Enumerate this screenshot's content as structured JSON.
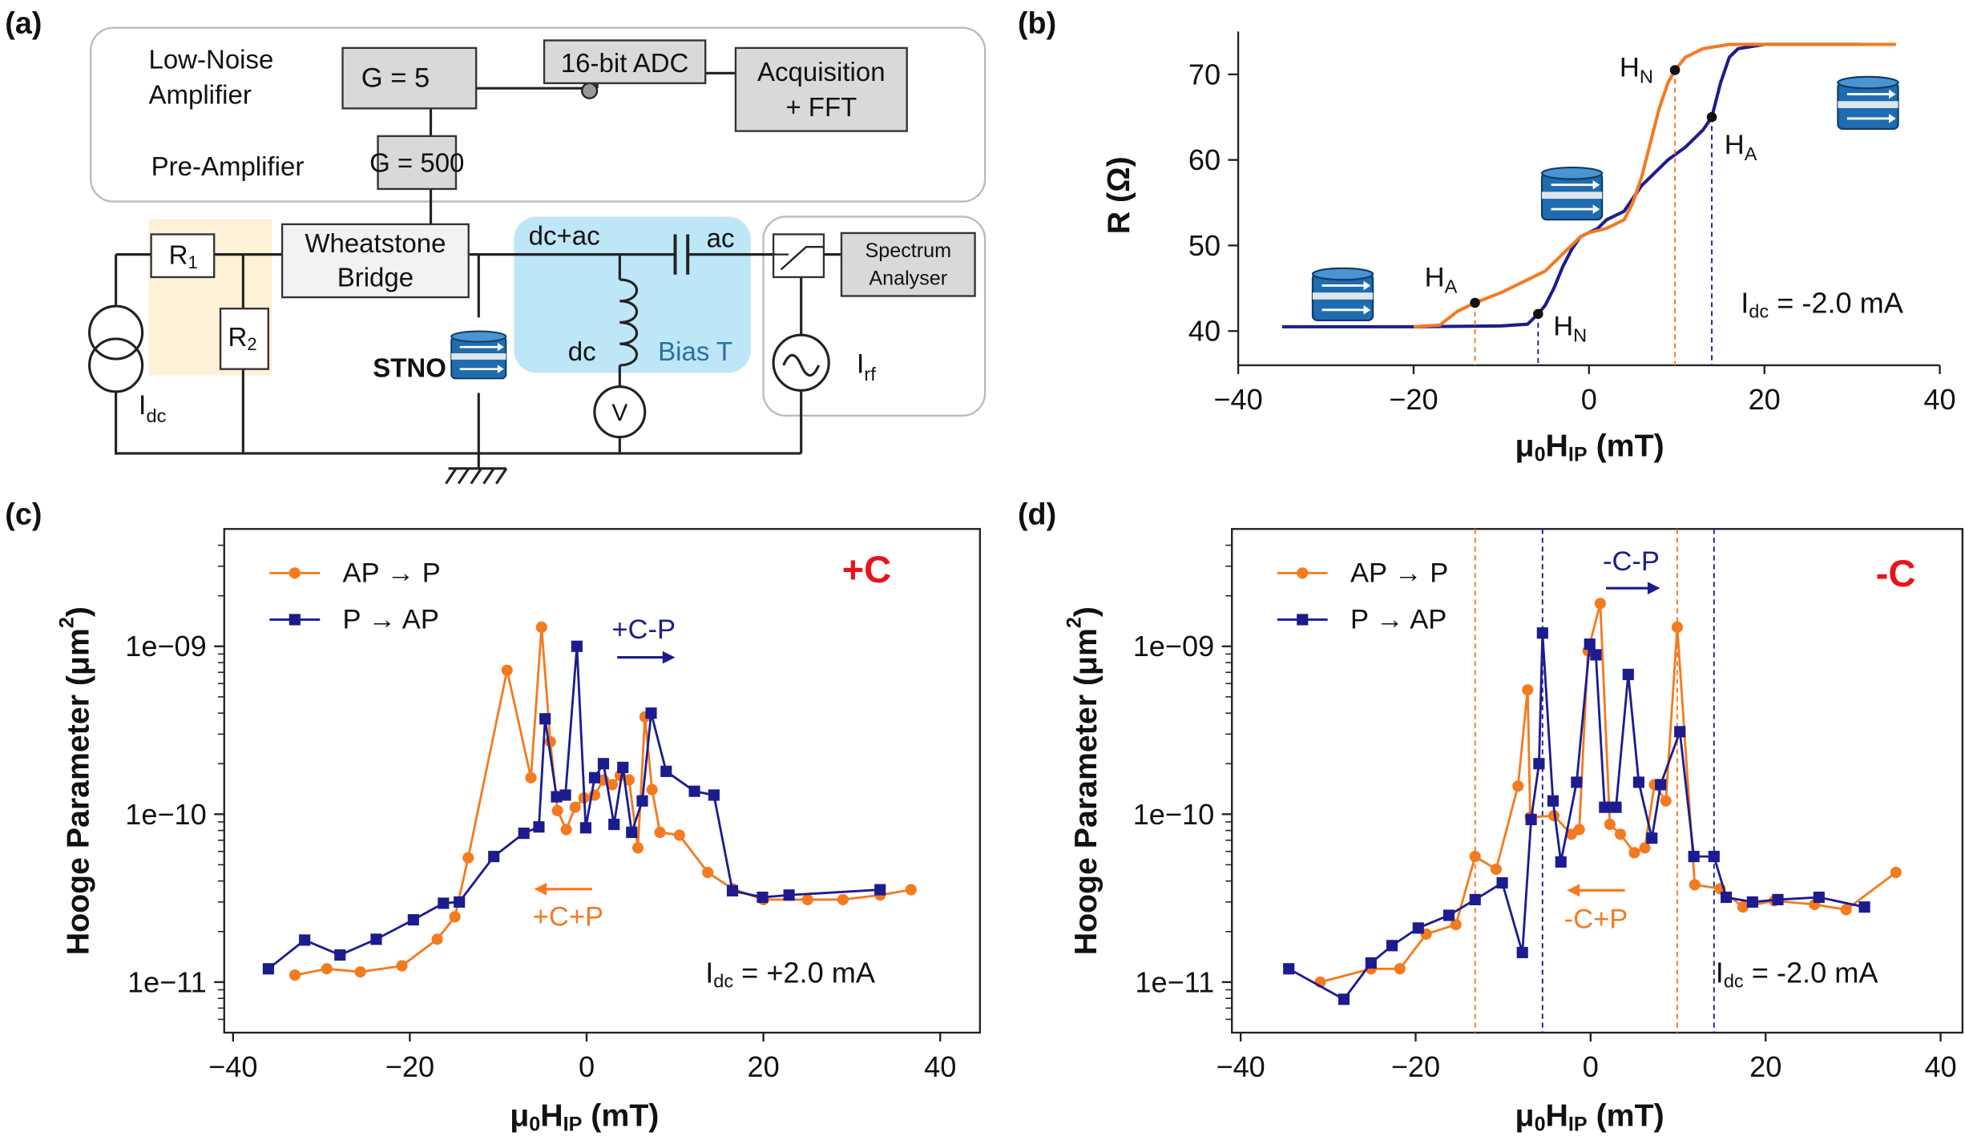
{
  "panel_labels": [
    "(a)",
    "(b)",
    "(c)",
    "(d)"
  ],
  "diagram": {
    "low_noise_amplifier": [
      "Low-Noise",
      "Amplifier"
    ],
    "gain_lna": "G = 5",
    "adc": "16-bit ADC",
    "acquisition": [
      "Acquisition",
      "+ FFT"
    ],
    "pre_amplifier": "Pre-Amplifier",
    "gain_pre": "G = 500",
    "r1": [
      "R",
      "1"
    ],
    "r2": [
      "R",
      "2"
    ],
    "bridge": [
      "Wheatstone",
      "Bridge"
    ],
    "dc_ac": "dc+ac",
    "ac": "ac",
    "spectrum_analyser": [
      "Spectrum",
      "Analyser"
    ],
    "idc": [
      "I",
      "dc"
    ],
    "stno": "STNO",
    "dc": "dc",
    "bias_t": "Bias T",
    "voltmeter": "V",
    "irf": [
      "I",
      "rf"
    ]
  },
  "chart_data": [
    {
      "type": "line",
      "xlabel": [
        "μ",
        "0",
        "H",
        "IP",
        " (mT)"
      ],
      "ylabel": "R (Ω)",
      "xlim": [
        -40,
        40
      ],
      "xticks": [
        {
          "value": -40,
          "label": "−40"
        },
        {
          "value": -20,
          "label": "−20"
        },
        0,
        20,
        40
      ],
      "ylim": [
        36,
        75
      ],
      "yticks": [
        40,
        50,
        60,
        70
      ],
      "series": [
        {
          "color": "#1c1c8f",
          "x": [
            -35,
            -20,
            -10,
            -7,
            -5.8,
            -5,
            -4,
            -3,
            -2,
            -1,
            0,
            1,
            2,
            3,
            4,
            5,
            6,
            7,
            8,
            9,
            11,
            13,
            14,
            15,
            16,
            17,
            20,
            31
          ],
          "values": [
            40.5,
            40.5,
            40.6,
            40.8,
            42,
            43,
            45,
            47.5,
            49.5,
            51,
            51.5,
            52,
            53,
            53.5,
            54,
            55.5,
            57,
            58,
            59,
            60,
            61.5,
            63.5,
            65,
            69,
            72,
            73,
            73.5,
            73.5
          ]
        },
        {
          "color": "#f47a20",
          "x": [
            -20,
            -17,
            -16,
            -15,
            -13,
            -10,
            -7,
            -5,
            -3,
            -1,
            0,
            2,
            4,
            5,
            6,
            7,
            8,
            9,
            9.8,
            11,
            13,
            16,
            35
          ],
          "values": [
            40.5,
            40.7,
            41.5,
            42.3,
            43.3,
            44.5,
            46,
            47,
            49,
            51,
            51.5,
            52,
            53,
            55,
            58,
            62,
            66,
            69,
            70.5,
            72,
            73,
            73.5,
            73.5
          ]
        }
      ],
      "points": [
        {
          "label": [
            "H",
            "A"
          ],
          "x": -13,
          "y": 43.3,
          "color": "#f47a20"
        },
        {
          "label": [
            "H",
            "N"
          ],
          "x": -5.8,
          "y": 42,
          "color": "#1c1c8f"
        },
        {
          "label": [
            "H",
            "N"
          ],
          "x": 9.8,
          "y": 70.5,
          "color": "#f47a20"
        },
        {
          "label": [
            "H",
            "A"
          ],
          "x": 14,
          "y": 65,
          "color": "#1c1c8f"
        }
      ],
      "note": [
        "I",
        "dc",
        " = -2.0 mA"
      ]
    },
    {
      "type": "line",
      "log_y": true,
      "legend": "upper left",
      "xlabel": [
        "μ",
        "0",
        "H",
        "IP",
        " (mT)"
      ],
      "ylabel": [
        "Hooge Parameter (μm",
        "2",
        ")"
      ],
      "xlim": [
        -41,
        44.5
      ],
      "xticks": [
        {
          "value": -40,
          "label": "−40"
        },
        {
          "value": -20,
          "label": "−20"
        },
        0,
        20,
        40
      ],
      "ylim": [
        5e-12,
        5e-09
      ],
      "yticks": [
        {
          "value": 1e-11,
          "label": "1e−11"
        },
        {
          "value": 1e-10,
          "label": "1e−10"
        },
        {
          "value": 1e-09,
          "label": "1e−09"
        }
      ],
      "minor_yticks": [
        6e-12,
        7e-12,
        8e-12,
        9e-12,
        2e-11,
        3e-11,
        4e-11,
        5e-11,
        6e-11,
        7e-11,
        8e-11,
        9e-11,
        2e-10,
        3e-10,
        4e-10,
        5e-10,
        6e-10,
        7e-10,
        8e-10,
        9e-10,
        2e-09,
        3e-09,
        4e-09
      ],
      "series": [
        {
          "name": "AP → P",
          "color": "#f47a20",
          "marker": "circle",
          "x": [
            -33,
            -29.4,
            -25.6,
            -20.9,
            -16.9,
            -14.9,
            -13.4,
            -9,
            -6.3,
            -5.1,
            -4.1,
            -3.3,
            -2.3,
            -1.3,
            -0.3,
            0.9,
            1.9,
            2.9,
            3.8,
            4.8,
            5.8,
            6.6,
            7.4,
            8.3,
            10.5,
            13.7,
            16.5,
            20,
            25,
            29,
            33.2,
            36.7
          ],
          "values": [
            1.1e-11,
            1.2e-11,
            1.15e-11,
            1.25e-11,
            1.8e-11,
            2.45e-11,
            5.5e-11,
            7.2e-10,
            1.65e-10,
            1.3e-09,
            2.7e-10,
            1.05e-10,
            8.1e-11,
            1.1e-10,
            1.25e-10,
            1.3e-10,
            1.6e-10,
            1.5e-10,
            1.7e-10,
            1.6e-10,
            6.3e-11,
            3.8e-10,
            1.4e-10,
            7.8e-11,
            7.5e-11,
            4.5e-11,
            3.6e-11,
            3.1e-11,
            3.1e-11,
            3.1e-11,
            3.3e-11,
            3.55e-11
          ]
        },
        {
          "name": "P → AP",
          "color": "#1c1c8f",
          "marker": "square",
          "x": [
            -36,
            -31.9,
            -27.9,
            -23.8,
            -19.6,
            -16.2,
            -14.4,
            -10.5,
            -7.1,
            -5.4,
            -4.7,
            -3.4,
            -2.4,
            -1.1,
            -0.1,
            0.9,
            1.9,
            3.1,
            4.1,
            5.1,
            6.3,
            7.3,
            9,
            12.2,
            14.4,
            16.5,
            19.9,
            22.9,
            33.2
          ],
          "values": [
            1.2e-11,
            1.78e-11,
            1.45e-11,
            1.8e-11,
            2.35e-11,
            2.95e-11,
            3e-11,
            5.6e-11,
            7.7e-11,
            8.4e-11,
            3.7e-10,
            1.27e-10,
            1.3e-10,
            1e-09,
            8.3e-11,
            1.65e-10,
            2e-10,
            8.7e-11,
            1.9e-10,
            7.8e-11,
            1.2e-10,
            4e-10,
            1.8e-10,
            1.37e-10,
            1.3e-10,
            3.5e-11,
            3.2e-11,
            3.3e-11,
            3.55e-11
          ]
        }
      ],
      "annotations": [
        "+C+P",
        "+C-P"
      ],
      "corner_label": "+C",
      "note": [
        "I",
        "dc",
        " = +2.0 mA"
      ]
    },
    {
      "type": "line",
      "log_y": true,
      "legend": "upper left",
      "xlabel": [
        "μ",
        "0",
        "H",
        "IP",
        " (mT)"
      ],
      "ylabel": [
        "Hooge Parameter (μm",
        "2",
        ")"
      ],
      "xlim": [
        -41,
        42.5
      ],
      "xticks": [
        {
          "value": -40,
          "label": "−40"
        },
        {
          "value": -20,
          "label": "−20"
        },
        0,
        20,
        40
      ],
      "ylim": [
        5e-12,
        5e-09
      ],
      "yticks": [
        {
          "value": 1e-11,
          "label": "1e−11"
        },
        {
          "value": 1e-10,
          "label": "1e−10"
        },
        {
          "value": 1e-09,
          "label": "1e−09"
        }
      ],
      "minor_yticks": [
        6e-12,
        7e-12,
        8e-12,
        9e-12,
        2e-11,
        3e-11,
        4e-11,
        5e-11,
        6e-11,
        7e-11,
        8e-11,
        9e-11,
        2e-10,
        3e-10,
        4e-10,
        5e-10,
        6e-10,
        7e-10,
        8e-10,
        9e-10,
        2e-09,
        3e-09,
        4e-09
      ],
      "series": [
        {
          "name": "AP → P",
          "color": "#f47a20",
          "marker": "circle",
          "x": [
            -30.9,
            -25.1,
            -21.8,
            -18.8,
            -15.4,
            -13.2,
            -10.8,
            -8.3,
            -7.2,
            -6.9,
            -4.2,
            -2.2,
            -1.3,
            -0.3,
            1.1,
            2.2,
            3.4,
            5,
            6.2,
            7.3,
            8.6,
            9.9,
            11.9,
            14.8,
            17.4,
            21,
            25.6,
            29.2,
            34.9
          ],
          "values": [
            1e-11,
            1.2e-11,
            1.2e-11,
            1.93e-11,
            2.2e-11,
            5.6e-11,
            4.7e-11,
            1.47e-10,
            5.5e-10,
            9.6e-11,
            9.8e-11,
            7.6e-11,
            8.1e-11,
            9.4e-10,
            1.8e-09,
            8.7e-11,
            7.6e-11,
            5.9e-11,
            6.3e-11,
            1.5e-10,
            1.2e-10,
            1.3e-09,
            3.8e-11,
            3.6e-11,
            2.8e-11,
            3.05e-11,
            2.9e-11,
            2.7e-11,
            4.5e-11
          ]
        },
        {
          "name": "P → AP",
          "color": "#1c1c8f",
          "marker": "square",
          "x": [
            -34.5,
            -28.2,
            -25.1,
            -22.7,
            -19.7,
            -16.2,
            -13.2,
            -10.1,
            -7.8,
            -6.8,
            -5.9,
            -5.5,
            -4.3,
            -3.4,
            -1.6,
            -0.1,
            0.6,
            1.6,
            2.9,
            4.3,
            5.5,
            7,
            8,
            10.2,
            11.8,
            14.1,
            15.5,
            18.5,
            21.4,
            26.1,
            31.3
          ],
          "values": [
            1.2e-11,
            7.9e-12,
            1.3e-11,
            1.65e-11,
            2.1e-11,
            2.5e-11,
            3.1e-11,
            3.9e-11,
            1.5e-11,
            9.3e-11,
            2e-10,
            1.2e-09,
            1.2e-10,
            5.2e-11,
            1.55e-10,
            1.03e-09,
            8.9e-10,
            1.1e-10,
            1.1e-10,
            6.8e-10,
            1.55e-10,
            7.2e-11,
            1.5e-10,
            3.1e-10,
            5.6e-11,
            5.6e-11,
            3.2e-11,
            3e-11,
            3.1e-11,
            3.2e-11,
            2.8e-11
          ]
        }
      ],
      "vlines": [
        {
          "x": -13.2,
          "color": "#f47a20"
        },
        {
          "x": -5.5,
          "color": "#1c1c8f"
        },
        {
          "x": 9.9,
          "color": "#f47a20"
        },
        {
          "x": 14.1,
          "color": "#1c1c8f"
        }
      ],
      "annotations": [
        "-C+P",
        "-C-P"
      ],
      "corner_label": "-C",
      "note": [
        "I",
        "dc",
        " = -2.0 mA"
      ]
    }
  ]
}
